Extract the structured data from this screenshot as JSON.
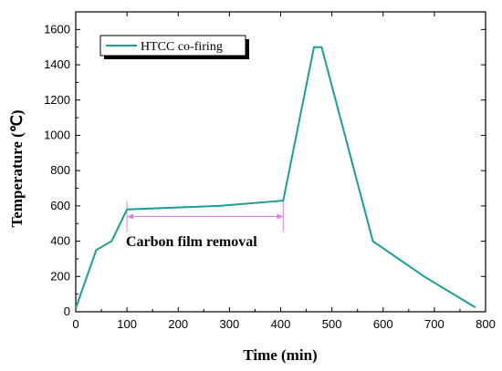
{
  "chart_data": {
    "type": "line",
    "xlabel": "Time (min)",
    "ylabel": "Temperature (℃)",
    "xlim": [
      0,
      800
    ],
    "ylim": [
      0,
      1700
    ],
    "xticks": [
      0,
      100,
      200,
      300,
      400,
      500,
      600,
      700,
      800
    ],
    "yticks": [
      0,
      200,
      400,
      600,
      800,
      1000,
      1200,
      1400,
      1600
    ],
    "grid": false,
    "legend_position": "top-left",
    "series": [
      {
        "name": "HTCC co-firing",
        "color": "#1a9e96",
        "x": [
          0,
          40,
          70,
          100,
          280,
          405,
          465,
          480,
          580,
          680,
          780
        ],
        "y": [
          20,
          350,
          400,
          580,
          600,
          630,
          1500,
          1500,
          400,
          200,
          25
        ]
      }
    ],
    "annotation": {
      "text": "Carbon film removal",
      "x_start": 100,
      "x_end": 405,
      "y": 540,
      "color": "#e07ee0"
    }
  }
}
